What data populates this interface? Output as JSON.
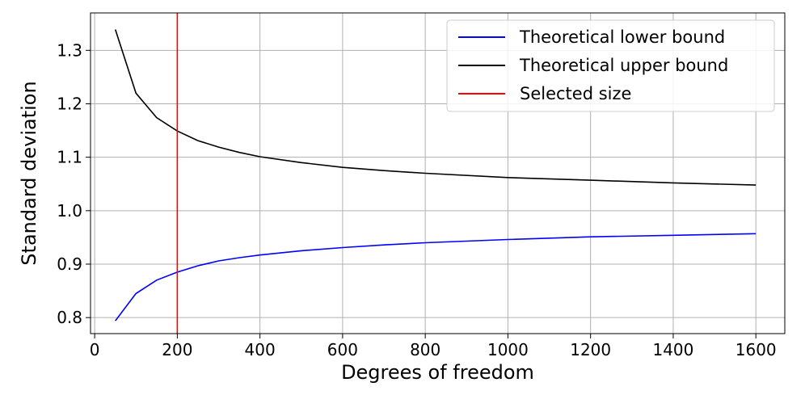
{
  "chart_data": {
    "type": "line",
    "title": "",
    "xlabel": "Degrees of freedom",
    "ylabel": "Standard deviation",
    "xlim": [
      -10,
      1670
    ],
    "ylim": [
      0.77,
      1.37
    ],
    "x_ticks": [
      0,
      200,
      400,
      600,
      800,
      1000,
      1200,
      1400,
      1600
    ],
    "y_ticks": [
      0.8,
      0.9,
      1.0,
      1.1,
      1.2,
      1.3
    ],
    "x_tick_labels": [
      "0",
      "200",
      "400",
      "600",
      "800",
      "1000",
      "1200",
      "1400",
      "1600"
    ],
    "y_tick_labels": [
      "0.8",
      "0.9",
      "1.0",
      "1.1",
      "1.2",
      "1.3"
    ],
    "grid": true,
    "legend_position": "top-right",
    "x": [
      50,
      100,
      150,
      200,
      250,
      300,
      350,
      400,
      500,
      600,
      700,
      800,
      1000,
      1200,
      1400,
      1600
    ],
    "series": [
      {
        "name": "Theoretical lower bound",
        "color": "#0000ff",
        "values": [
          0.794,
          0.845,
          0.87,
          0.885,
          0.897,
          0.906,
          0.912,
          0.917,
          0.925,
          0.931,
          0.936,
          0.94,
          0.946,
          0.951,
          0.954,
          0.957
        ]
      },
      {
        "name": "Theoretical upper bound",
        "color": "#000000",
        "values": [
          1.339,
          1.22,
          1.174,
          1.149,
          1.131,
          1.119,
          1.109,
          1.101,
          1.09,
          1.081,
          1.075,
          1.07,
          1.062,
          1.057,
          1.052,
          1.048
        ]
      }
    ],
    "vertical_lines": [
      {
        "name": "Selected size",
        "color": "#ff0000",
        "x": 200
      }
    ]
  }
}
